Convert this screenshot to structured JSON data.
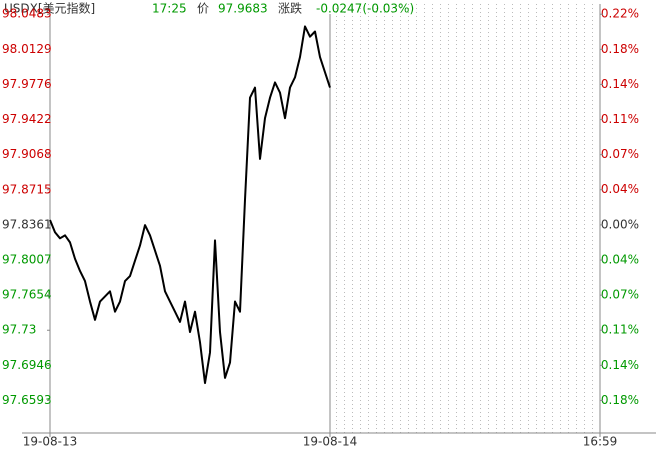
{
  "chart_data": {
    "type": "line",
    "header": {
      "symbol": "USDX[美元指数]",
      "time": "17:25",
      "price_label": "价",
      "price": "97.9683",
      "change_label": "涨跌",
      "change": "-0.0247(-0.03%)"
    },
    "up_color": "#cc0000",
    "down_color": "#009900",
    "flat_color": "#333333",
    "x": [
      0,
      1,
      2,
      3,
      4,
      5,
      6,
      7,
      8,
      9,
      10,
      11,
      12,
      13,
      14,
      15,
      16,
      17,
      18,
      19,
      20,
      21,
      22,
      23,
      24,
      25,
      26,
      27,
      28,
      29,
      30,
      31,
      32,
      33,
      34,
      35,
      36,
      37,
      38,
      39,
      40,
      41,
      42,
      43,
      44,
      45,
      46,
      47,
      48,
      49,
      50,
      51,
      52,
      53,
      54,
      55,
      56
    ],
    "series": [
      {
        "color": "#000000",
        "values": [
          97.841,
          97.8287,
          97.8226,
          97.8256,
          97.8185,
          97.802,
          97.7897,
          97.7795,
          97.7589,
          97.7405,
          97.7589,
          97.7641,
          97.7692,
          97.7487,
          97.7589,
          97.7795,
          97.7846,
          97.8,
          97.8154,
          97.8359,
          97.8256,
          97.8102,
          97.7949,
          97.7692,
          97.7589,
          97.7487,
          97.7384,
          97.7589,
          97.7282,
          97.7487,
          97.7179,
          97.6768,
          97.7076,
          97.8205,
          97.7282,
          97.682,
          97.6974,
          97.7589,
          97.7487,
          97.8615,
          97.9642,
          97.9744,
          97.9026,
          97.9436,
          97.9642,
          97.9796,
          97.9693,
          97.9436,
          97.9744,
          97.9847,
          98.0052,
          98.036,
          98.0257,
          98.0309,
          98.0052,
          97.9898,
          97.9744
        ]
      }
    ],
    "xlim": [
      0,
      110
    ],
    "xticks": [
      {
        "value": 0,
        "label": "19-08-13"
      },
      {
        "value": 56,
        "label": "19-08-14"
      },
      {
        "value": 110,
        "label": "16:59"
      }
    ],
    "ylim": [
      97.6265,
      98.0586
    ],
    "yticks": [
      98.0483,
      98.0129,
      97.9776,
      97.9422,
      97.9068,
      97.8715,
      97.8361,
      97.8007,
      97.7654,
      97.73,
      97.6946,
      97.6593
    ],
    "y2lim": [
      -0.2142,
      0.2274
    ],
    "y2ticks": [
      {
        "value": 0.2169,
        "label": "0.22%"
      },
      {
        "value": 0.1807,
        "label": "0.18%"
      },
      {
        "value": 0.1446,
        "label": "0.14%"
      },
      {
        "value": 0.1084,
        "label": "0.11%"
      },
      {
        "value": 0.0723,
        "label": "0.07%"
      },
      {
        "value": 0.0362,
        "label": "0.04%"
      },
      {
        "value": 0,
        "label": "0.00%"
      },
      {
        "value": -0.0362,
        "label": "0.04%"
      },
      {
        "value": -0.0723,
        "label": "0.07%"
      },
      {
        "value": -0.1084,
        "label": "0.11%"
      },
      {
        "value": -0.1446,
        "label": "0.14%"
      },
      {
        "value": -0.1807,
        "label": "0.18%"
      }
    ],
    "grid": false
  }
}
